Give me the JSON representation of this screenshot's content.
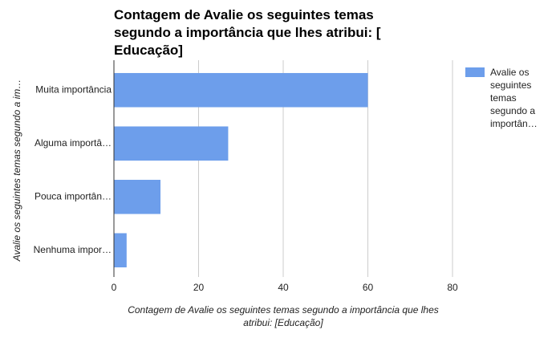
{
  "chart_data": {
    "type": "bar",
    "orientation": "horizontal",
    "title": "Contagem de Avalie os seguintes temas segundo a importância que lhes atribui: [ Educação]",
    "x_label": "Contagem de Avalie os seguintes temas segundo a importância que lhes atribui: [Educação]",
    "y_label": "Avalie os seguintes temas segundo a im…",
    "categories": [
      "Muita importância",
      "Alguma importâ…",
      "Pouca importân…",
      "Nenhuma impor…"
    ],
    "series": [
      {
        "name": "Avalie os seguintes temas segundo a importân…",
        "color": "#6d9eeb",
        "values": [
          60,
          27,
          11,
          3
        ]
      }
    ],
    "xlim": [
      0,
      80
    ],
    "xticks": [
      0,
      20,
      40,
      60,
      80
    ],
    "grid": true,
    "legend": "right"
  }
}
